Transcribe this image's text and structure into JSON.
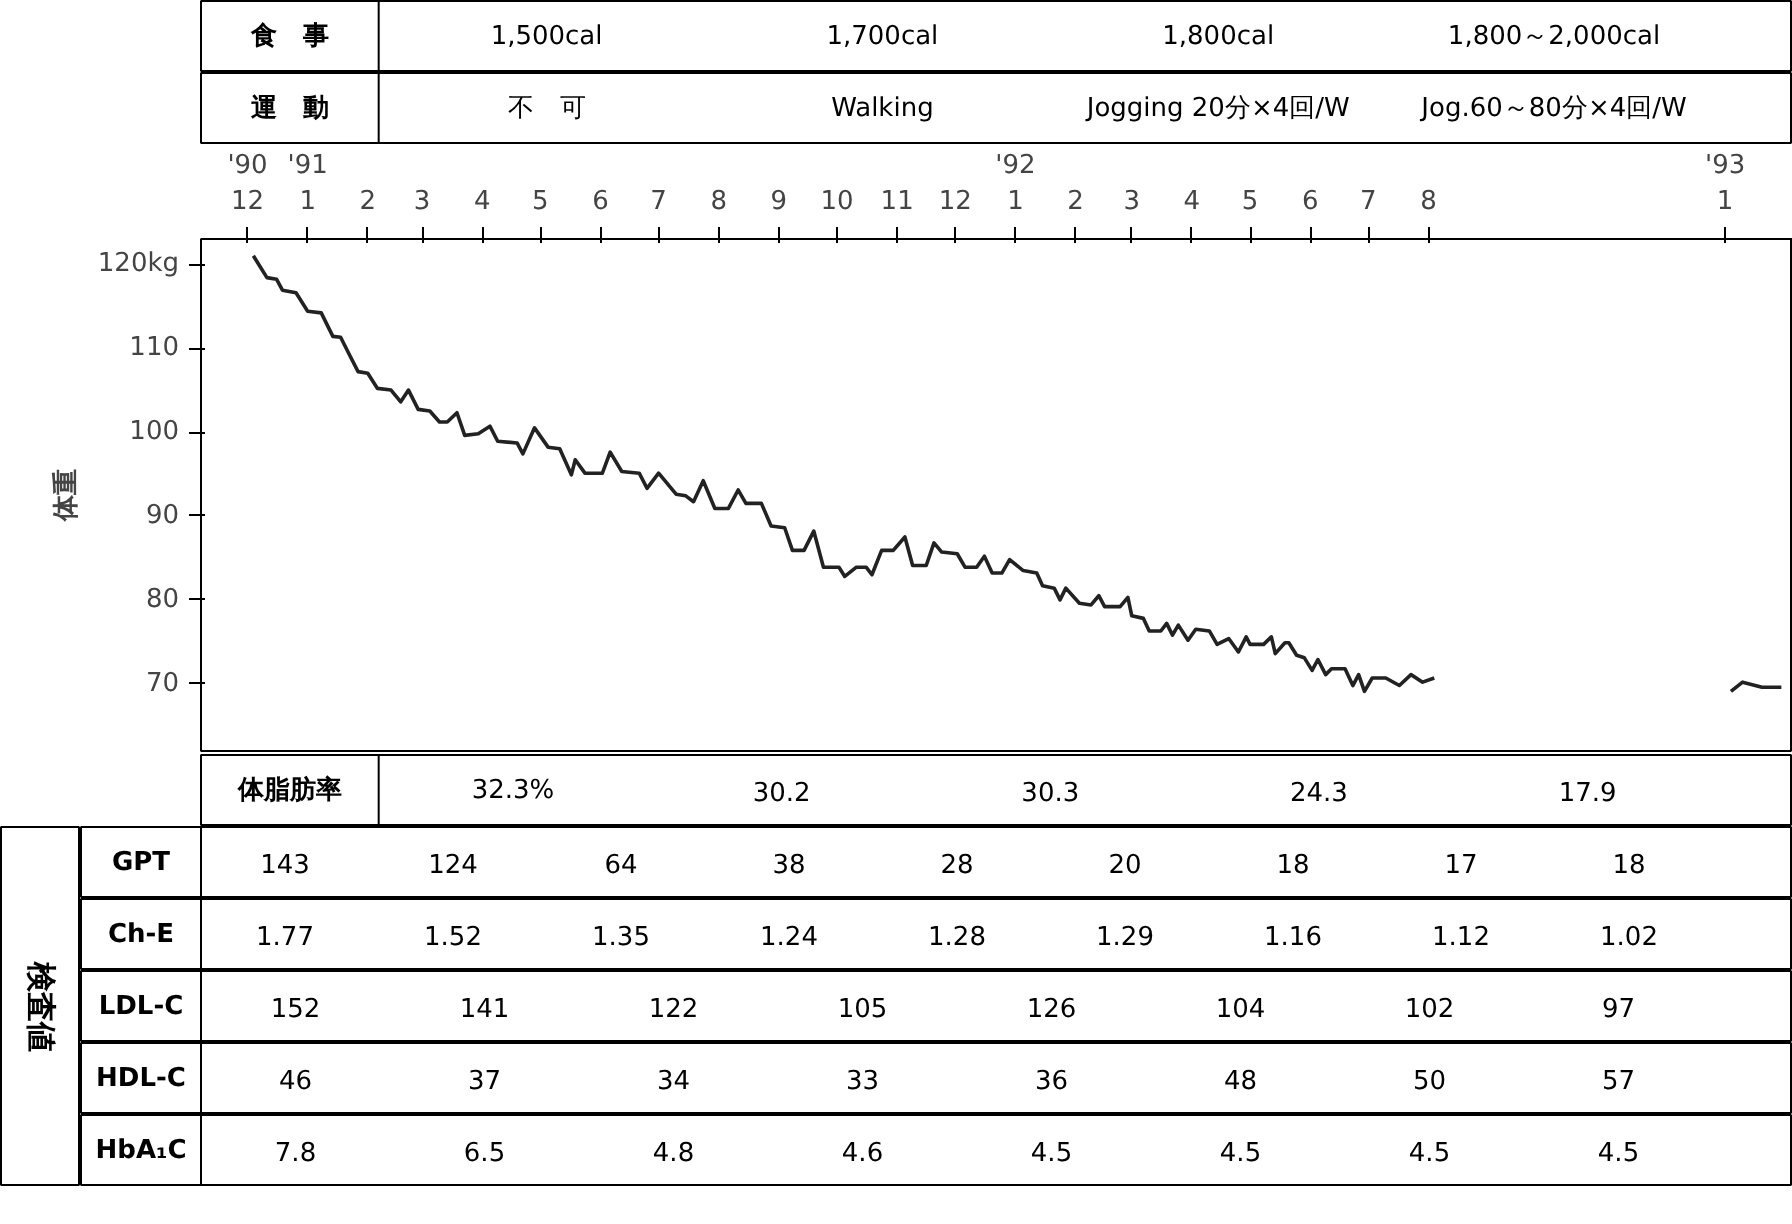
{
  "chart_data": [
    {
      "type": "other",
      "annotations": [
        "食　事",
        "1,500cal",
        "1,700cal",
        "1,800cal",
        "1,800～2,000cal"
      ]
    },
    {
      "type": "other",
      "annotations": [
        "運　動",
        "不　可",
        "Walking",
        "Jogging 20分×4回/W",
        "Jog.60～80分×4回/W"
      ]
    },
    {
      "type": "line",
      "ylabel": "体重",
      "color": "#222222",
      "x": [
        "1990-12-04",
        "1990-12-11",
        "1990-12-16",
        "1990-12-19",
        "1990-12-26",
        "1991-01-01",
        "1991-01-08",
        "1991-01-14",
        "1991-01-18",
        "1991-01-23",
        "1991-01-27",
        "1991-02-01",
        "1991-02-06",
        "1991-02-13",
        "1991-02-18",
        "1991-02-22",
        "1991-02-27",
        "1991-03-05",
        "1991-03-10",
        "1991-03-14",
        "1991-03-19",
        "1991-03-23",
        "1991-03-30",
        "1991-04-05",
        "1991-04-09",
        "1991-04-19",
        "1991-04-22",
        "1991-04-28",
        "1991-05-05",
        "1991-05-11",
        "1991-05-17",
        "1991-05-19",
        "1991-05-24",
        "1991-06-02",
        "1991-06-06",
        "1991-06-12",
        "1991-06-21",
        "1991-06-25",
        "1991-07-01",
        "1991-07-10",
        "1991-07-15",
        "1991-07-19",
        "1991-07-24",
        "1991-07-30",
        "1991-08-06",
        "1991-08-11",
        "1991-08-15",
        "1991-08-23",
        "1991-08-28",
        "1991-09-04",
        "1991-09-08",
        "1991-09-14",
        "1991-09-19",
        "1991-09-24",
        "1991-10-02",
        "1991-10-05",
        "1991-10-11",
        "1991-10-16",
        "1991-10-19",
        "1991-10-24",
        "1991-10-30",
        "1991-11-05",
        "1991-11-09",
        "1991-11-16",
        "1991-11-20",
        "1991-11-24",
        "1991-12-02",
        "1991-12-06",
        "1991-12-12",
        "1991-12-16",
        "1991-12-20",
        "1991-12-25",
        "1991-12-29",
        "1992-01-05",
        "1992-01-12",
        "1992-01-15",
        "1992-01-21",
        "1992-01-24",
        "1992-01-27",
        "1992-02-03",
        "1992-02-09",
        "1992-02-13",
        "1992-02-16",
        "1992-02-24",
        "1992-02-28",
        "1992-03-01",
        "1992-03-07",
        "1992-03-10",
        "1992-03-16",
        "1992-03-19",
        "1992-03-22",
        "1992-03-25",
        "1992-03-30",
        "1992-04-03",
        "1992-04-10",
        "1992-04-14",
        "1992-04-20",
        "1992-04-25",
        "1992-04-29",
        "1992-05-01",
        "1992-05-08",
        "1992-05-12",
        "1992-05-14",
        "1992-05-19",
        "1992-05-21",
        "1992-05-25",
        "1992-05-29",
        "1992-06-02",
        "1992-06-05",
        "1992-06-09",
        "1992-06-12",
        "1992-06-19",
        "1992-06-23",
        "1992-06-26",
        "1992-06-29",
        "1992-07-03",
        "1992-07-10",
        "1992-07-17",
        "1992-07-23",
        "1992-07-29",
        "1992-08-04",
        "1992-08-16",
        "1993-01-04",
        "1993-01-10",
        "1993-01-20",
        "1993-01-30"
      ],
      "values": [
        121.0,
        118.4,
        118.2,
        116.9,
        116.6,
        114.4,
        114.2,
        111.4,
        111.3,
        109.0,
        107.2,
        107.0,
        105.2,
        105.0,
        103.6,
        105.0,
        102.7,
        102.5,
        101.2,
        101.2,
        102.3,
        99.6,
        99.8,
        100.7,
        98.9,
        98.7,
        97.4,
        100.5,
        98.2,
        98.0,
        94.9,
        96.7,
        95.1,
        95.1,
        97.6,
        95.3,
        95.1,
        93.3,
        95.1,
        92.6,
        92.4,
        91.7,
        94.2,
        90.9,
        90.9,
        93.1,
        91.5,
        91.5,
        88.8,
        88.6,
        85.9,
        85.9,
        88.2,
        83.9,
        83.9,
        82.8,
        83.9,
        83.9,
        83.0,
        85.9,
        85.9,
        87.5,
        84.1,
        84.1,
        86.8,
        85.7,
        85.5,
        83.9,
        83.9,
        85.2,
        83.2,
        83.2,
        84.8,
        83.5,
        83.2,
        81.7,
        81.4,
        80.0,
        81.4,
        79.6,
        79.4,
        80.5,
        79.2,
        79.2,
        80.3,
        78.1,
        77.8,
        76.3,
        76.3,
        77.2,
        75.8,
        77.0,
        75.2,
        76.5,
        76.3,
        74.7,
        75.4,
        73.8,
        75.6,
        74.7,
        74.7,
        75.6,
        73.6,
        74.9,
        74.9,
        73.4,
        73.1,
        71.6,
        72.9,
        71.1,
        71.8,
        71.8,
        69.8,
        71.1,
        69.1,
        70.7,
        70.7,
        69.8,
        71.1,
        70.2,
        70.7,
        null,
        69.1,
        70.2,
        69.6,
        69.6
      ],
      "xlim": [
        "1990-11-07",
        "1993-02-05"
      ],
      "xticks": [
        {
          "value": "1990-12",
          "label": "'90\n12"
        },
        {
          "value": "1991-01",
          "label": "'91\n1"
        },
        {
          "value": "1991-02",
          "label": "2"
        },
        {
          "value": "1991-03",
          "label": "3"
        },
        {
          "value": "1991-04",
          "label": "4"
        },
        {
          "value": "1991-05",
          "label": "5"
        },
        {
          "value": "1991-06",
          "label": "6"
        },
        {
          "value": "1991-07",
          "label": "7"
        },
        {
          "value": "1991-08",
          "label": "8"
        },
        {
          "value": "1991-09",
          "label": "9"
        },
        {
          "value": "1991-10",
          "label": "10"
        },
        {
          "value": "1991-11",
          "label": "11"
        },
        {
          "value": "1991-12",
          "label": "12"
        },
        {
          "value": "1992-01",
          "label": "'92\n1"
        },
        {
          "value": "1992-02",
          "label": "2"
        },
        {
          "value": "1992-03",
          "label": "3"
        },
        {
          "value": "1992-04",
          "label": "4"
        },
        {
          "value": "1992-05",
          "label": "5"
        },
        {
          "value": "1992-06",
          "label": "6"
        },
        {
          "value": "1992-07",
          "label": "7"
        },
        {
          "value": "1992-08",
          "label": "8"
        },
        {
          "value": "1993-01",
          "label": "'93\n1"
        }
      ],
      "ylim": [
        62,
        123
      ],
      "yticks": [
        70,
        80,
        90,
        100,
        110,
        {
          "value": 120,
          "label": "120kg"
        }
      ]
    },
    {
      "type": "other",
      "annotations": [
        "体脂肪率",
        "32.3%",
        "30.2",
        "30.3",
        "24.3",
        "17.9"
      ]
    },
    {
      "type": "other",
      "ylabel": "検査値"
    },
    {
      "type": "other",
      "annotations": [
        "GPT",
        "143",
        "124",
        "64",
        "38",
        "28",
        "20",
        "18",
        "17",
        "18"
      ]
    },
    {
      "type": "other",
      "annotations": [
        "Ch-E",
        "1.77",
        "1.52",
        "1.35",
        "1.24",
        "1.28",
        "1.29",
        "1.16",
        "1.12",
        "1.02"
      ]
    },
    {
      "type": "other",
      "annotations": [
        "LDL-C",
        "152",
        "141",
        "122",
        "105",
        "126",
        "104",
        "102",
        "97"
      ]
    },
    {
      "type": "other",
      "annotations": [
        "HDL-C",
        "46",
        "37",
        "34",
        "33",
        "36",
        "48",
        "50",
        "57"
      ]
    },
    {
      "type": "other",
      "annotations": [
        "HbA₁C",
        "7.8",
        "6.5",
        "4.8",
        "4.6",
        "4.5",
        "4.5",
        "4.5",
        "4.5"
      ]
    }
  ]
}
